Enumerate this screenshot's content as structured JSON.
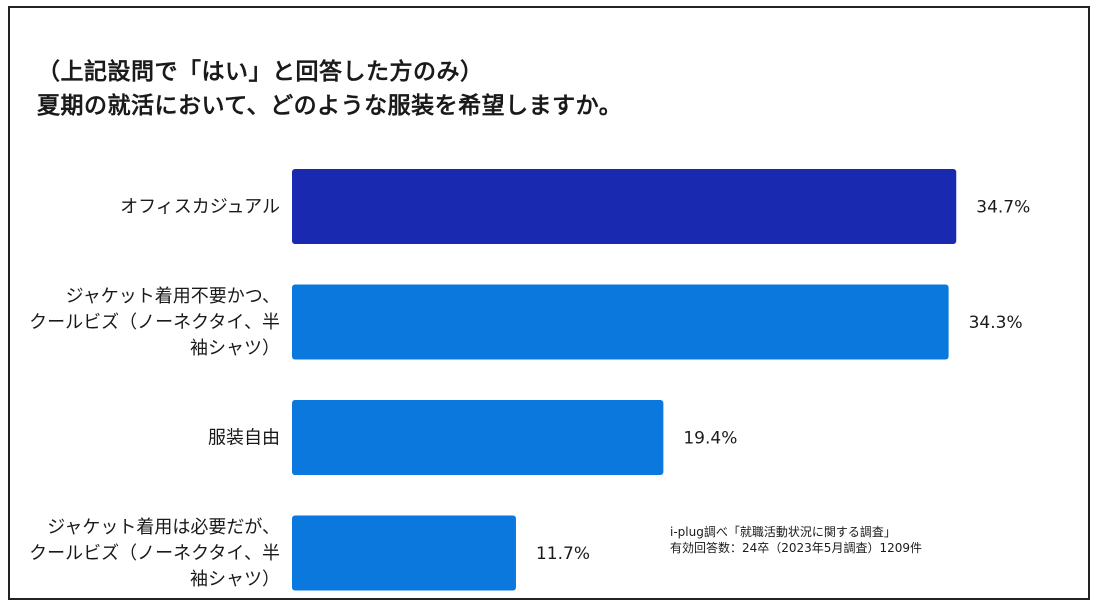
{
  "chart_data": {
    "type": "bar",
    "orientation": "horizontal",
    "title_lines": [
      "（上記設問で「はい」と回答した方のみ）",
      "夏期の就活において、どのような服装を希望しますか。"
    ],
    "categories": [
      [
        "オフィスカジュアル"
      ],
      [
        "ジャケット着用不要かつ、",
        "クールビズ（ノーネクタイ、半",
        "袖シャツ）"
      ],
      [
        "服装自由"
      ],
      [
        "ジャケット着用は必要だが、",
        "クールビズ（ノーネクタイ、半",
        "袖シャツ）"
      ]
    ],
    "values": [
      34.7,
      34.3,
      19.4,
      11.7
    ],
    "value_labels": [
      "34.7%",
      "34.3%",
      "19.4%",
      "11.7%"
    ],
    "bar_colors": [
      "#1a2ab0",
      "#0a78dc",
      "#0a78dc",
      "#0a78dc"
    ],
    "xlim": [
      0,
      35
    ],
    "grid": false,
    "legend": "none"
  },
  "source_note": {
    "line1": "i-plug調べ「就職活動状況に関する調査」",
    "line2": "有効回答数：24卒（2023年5月調査）1209件"
  }
}
